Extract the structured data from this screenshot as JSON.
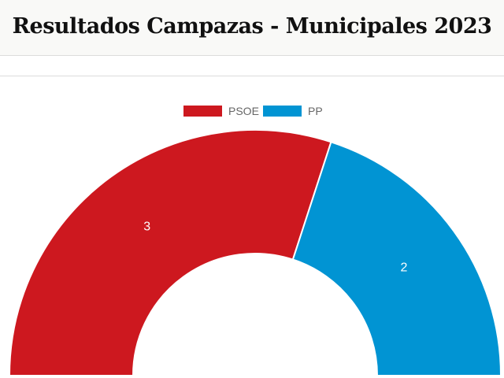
{
  "header": {
    "title": "Resultados Campazas - Municipales 2023"
  },
  "chart_data": {
    "type": "pie",
    "variant": "semicircle-doughnut",
    "title": "Resultados Campazas - Municipales 2023",
    "legend_position": "top-center",
    "categories": [
      "PSOE",
      "PP"
    ],
    "values": [
      3,
      2
    ],
    "colors": [
      "#cd181f",
      "#0194d3"
    ]
  }
}
